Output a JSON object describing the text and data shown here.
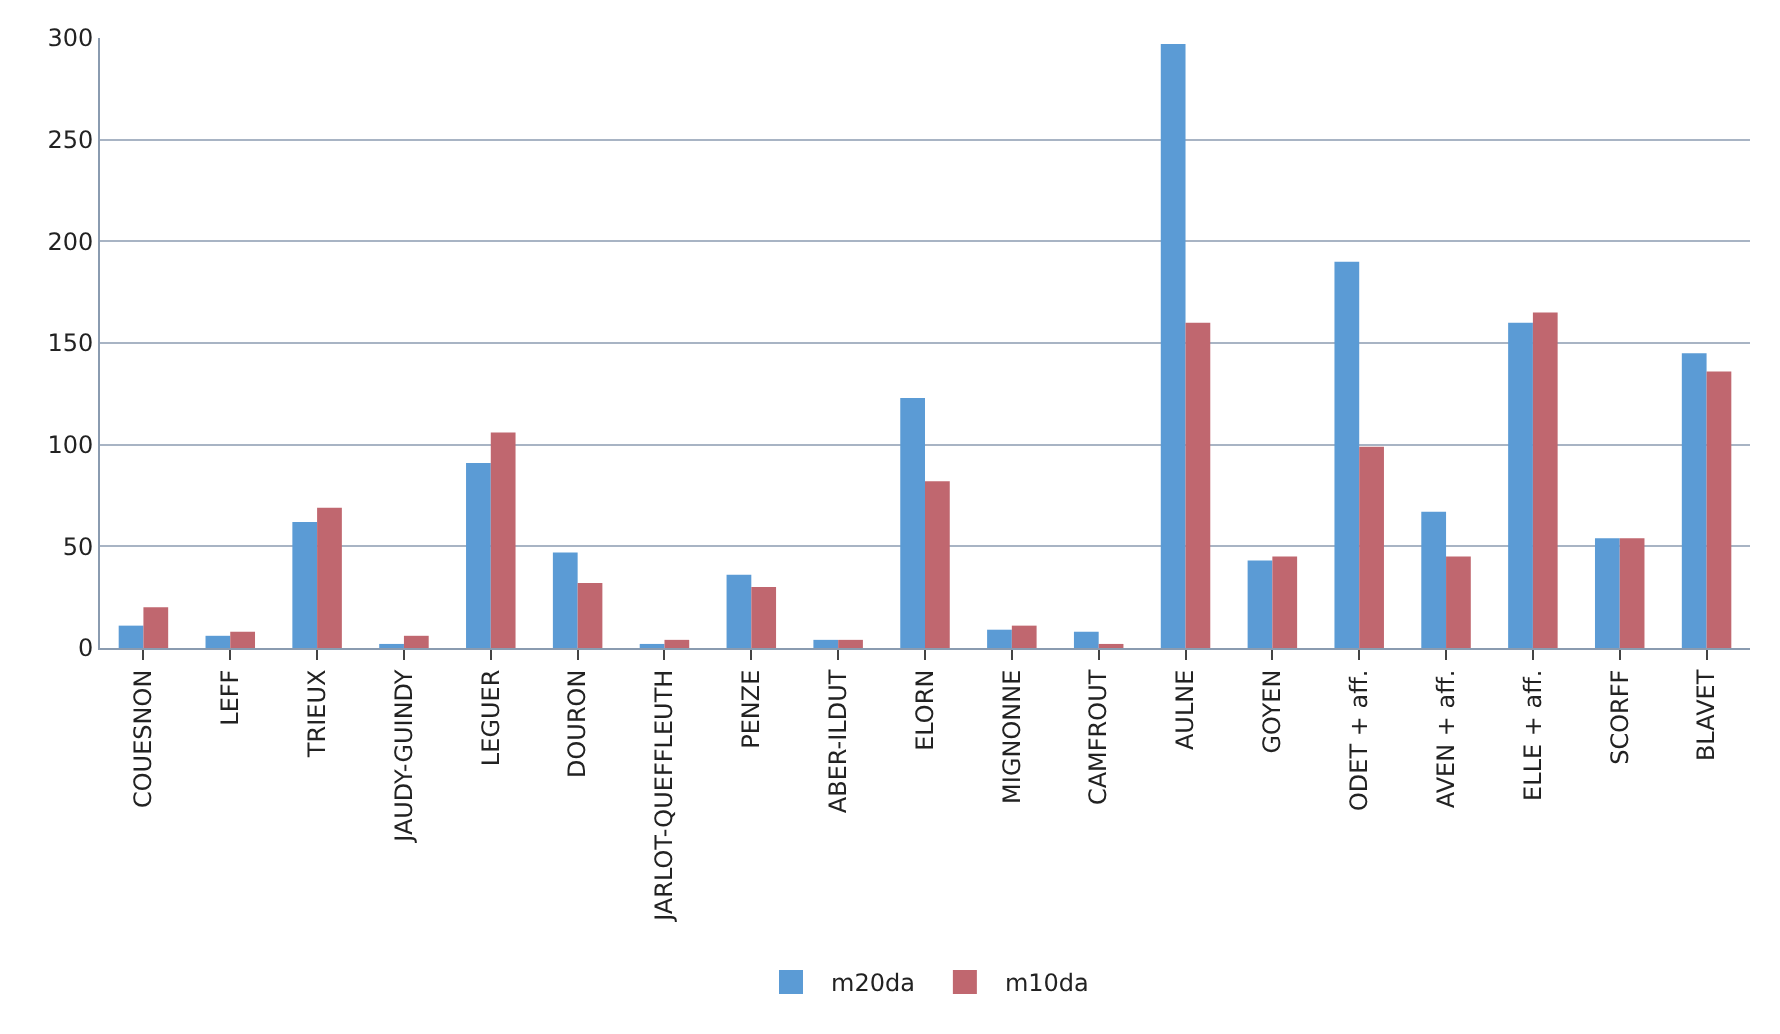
{
  "chart_data": {
    "type": "bar",
    "categories": [
      "COUESNON",
      "LEFF",
      "TRIEUX",
      "JAUDY-GUINDY",
      "LEGUER",
      "DOURON",
      "JARLOT-QUEFFLEUTH",
      "PENZE",
      "ABER-ILDUT",
      "ELORN",
      "MIGNONNE",
      "CAMFROUT",
      "AULNE",
      "GOYEN",
      "ODET + aff.",
      "AVEN + aff.",
      "ELLE + aff.",
      "SCORFF",
      "BLAVET"
    ],
    "series": [
      {
        "name": "m20da",
        "color": "#5b9bd5",
        "values": [
          11,
          6,
          62,
          2,
          91,
          47,
          2,
          36,
          4,
          123,
          9,
          8,
          297,
          43,
          190,
          67,
          160,
          54,
          145
        ]
      },
      {
        "name": "m10da",
        "color": "#c0676f",
        "values": [
          20,
          8,
          69,
          6,
          106,
          32,
          4,
          30,
          4,
          82,
          11,
          2,
          160,
          45,
          99,
          45,
          165,
          54,
          136
        ]
      }
    ],
    "ylim": [
      0,
      300
    ],
    "yticks": [
      0,
      50,
      100,
      150,
      200,
      250,
      300
    ],
    "grid": "y",
    "legend": "bottom"
  }
}
